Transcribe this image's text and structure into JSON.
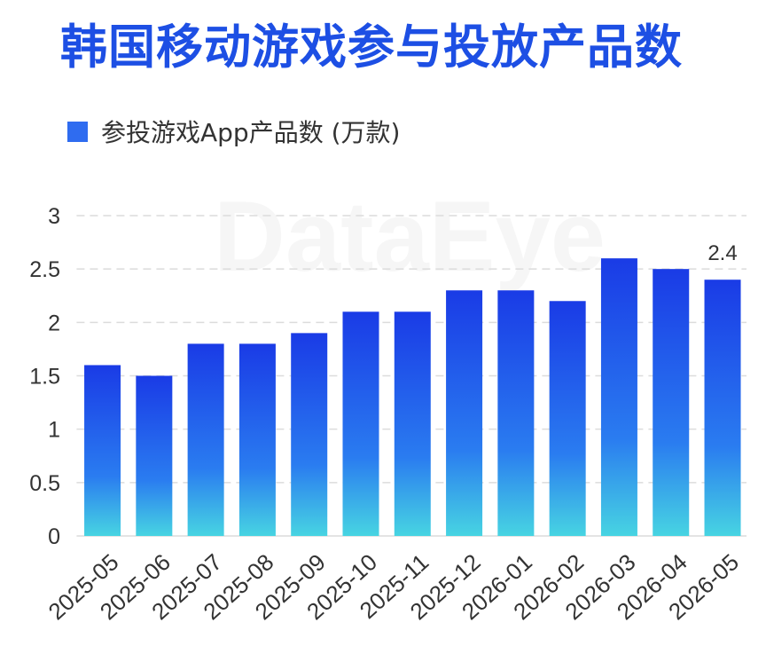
{
  "watermark": "DataEye",
  "colors": {
    "title": "#1d4fe4",
    "legend_swatch": "#2f6cf0",
    "bar_top": "#1a3be6",
    "bar_mid": "#2a7cf0",
    "bar_bottom": "#47d4e2",
    "grid": "#dcdcdc",
    "text": "#333333"
  },
  "chart_data": {
    "type": "bar",
    "title": "韩国移动游戏参与投放产品数",
    "categories": [
      "2025-05",
      "2025-06",
      "2025-07",
      "2025-08",
      "2025-09",
      "2025-10",
      "2025-11",
      "2025-12",
      "2026-01",
      "2026-02",
      "2026-03",
      "2026-04",
      "2026-05"
    ],
    "series": [
      {
        "name": "参投游戏App产品数 (万款)",
        "values": [
          1.6,
          1.5,
          1.8,
          1.8,
          1.9,
          2.1,
          2.1,
          2.3,
          2.3,
          2.2,
          2.6,
          2.5,
          2.4
        ]
      }
    ],
    "ylim": [
      0,
      3
    ],
    "yticks": [
      0,
      0.5,
      1,
      1.5,
      2,
      2.5,
      3
    ],
    "data_labels": [
      {
        "category": "2026-05",
        "label": "2.4"
      }
    ],
    "grid": true,
    "legend_position": "top-left"
  }
}
